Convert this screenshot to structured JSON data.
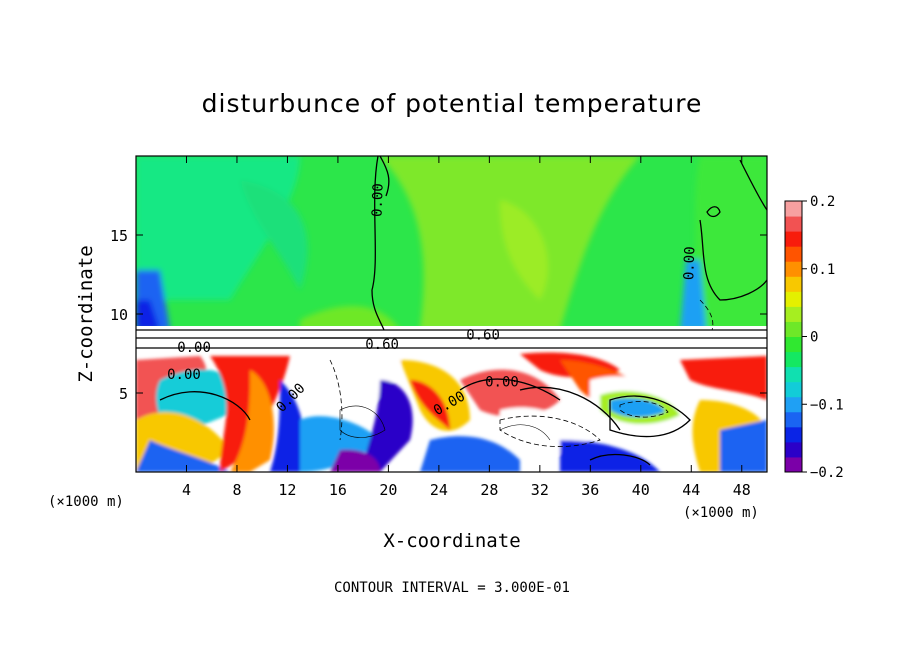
{
  "chart_data": {
    "type": "heatmap",
    "title": "disturbunce of potential temperature",
    "xlabel": "X-coordinate",
    "ylabel": "Z-coordinate",
    "x_unit": "(×1000 m)",
    "y_unit": "(×1000 m)",
    "x_ticks": [
      4,
      8,
      12,
      16,
      20,
      24,
      28,
      32,
      36,
      40,
      44,
      48
    ],
    "y_ticks": [
      5,
      10,
      15
    ],
    "xlim": [
      0,
      50
    ],
    "ylim": [
      0,
      20
    ],
    "colorbar": {
      "ticks": [
        "0.2",
        "0.1",
        "0",
        "−0.1",
        "−0.2"
      ],
      "range": [
        -0.2,
        0.2
      ],
      "colors": [
        "#7b00a8",
        "#2b00c8",
        "#0a24e6",
        "#1a64f2",
        "#1fa0f4",
        "#12ccd8",
        "#10e0b0",
        "#14e862",
        "#30e830",
        "#6ee828",
        "#a6ee20",
        "#e4f000",
        "#f8c800",
        "#ff9000",
        "#ff5400",
        "#f81c0c",
        "#f25252",
        "#f7a0a0"
      ]
    },
    "contour_labels": [
      {
        "text": "0.00",
        "x": 19.5,
        "z": 17.2,
        "rotate": -88
      },
      {
        "text": "0.00",
        "x": 44.2,
        "z": 13.2,
        "rotate": -88
      },
      {
        "text": "0.60",
        "x": 27.5,
        "z": 8.4,
        "rotate": 0
      },
      {
        "text": "0.60",
        "x": 19.5,
        "z": 7.8,
        "rotate": 0
      },
      {
        "text": "0.00",
        "x": 4.6,
        "z": 7.6,
        "rotate": 0
      },
      {
        "text": "0.00",
        "x": 3.8,
        "z": 5.9,
        "rotate": 0
      },
      {
        "text": "0.00",
        "x": 12.5,
        "z": 4.5,
        "rotate": -45
      },
      {
        "text": "0.00",
        "x": 29.0,
        "z": 5.4,
        "rotate": 0
      },
      {
        "text": "0.00",
        "x": 25.0,
        "z": 4.1,
        "rotate": -30
      }
    ],
    "annotation": "CONTOUR INTERVAL = 3.000E-01"
  }
}
